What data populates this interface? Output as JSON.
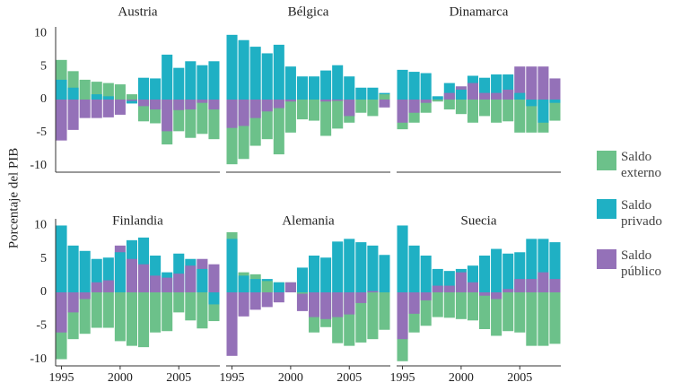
{
  "chart_data": [
    {
      "type": "bar",
      "title": "Austria",
      "ylabel": "Porcentaje del PIB",
      "x": [
        1995,
        1996,
        1997,
        1998,
        1999,
        2000,
        2001,
        2002,
        2003,
        2004,
        2005,
        2006,
        2007,
        2008
      ],
      "xlim": [
        1994.5,
        2008.5
      ],
      "ylim": [
        -11,
        11
      ],
      "yticks": [
        -10,
        -5,
        0,
        5,
        10
      ],
      "series": [
        {
          "name": "Saldo externo",
          "color": "#6cc18a",
          "values": [
            6,
            4.3,
            3,
            2.7,
            2.5,
            2.3,
            0.8,
            -3.3,
            -3.6,
            -6.8,
            -4.8,
            -5.8,
            -5.2,
            -6
          ]
        },
        {
          "name": "Saldo privado",
          "color": "#1fb0c4",
          "values": [
            3,
            1.8,
            0,
            0.8,
            0.5,
            0,
            -0.6,
            3.3,
            3.2,
            6.8,
            4.8,
            5.8,
            5.2,
            5.8
          ]
        },
        {
          "name": "Saldo público",
          "color": "#9471b8",
          "values": [
            -6.2,
            -4.6,
            -2.8,
            -2.8,
            -2.7,
            -2.3,
            -0.2,
            -1,
            -1.5,
            -4.8,
            -1.6,
            -1.5,
            -0.5,
            -1.5
          ]
        }
      ]
    },
    {
      "type": "bar",
      "title": "Bélgica",
      "x": [
        1995,
        1996,
        1997,
        1998,
        1999,
        2000,
        2001,
        2002,
        2003,
        2004,
        2005,
        2006,
        2007,
        2008
      ],
      "xlim": [
        1994.5,
        2008.5
      ],
      "ylim": [
        -11,
        11
      ],
      "series": [
        {
          "name": "Saldo externo",
          "color": "#6cc18a",
          "values": [
            -9.8,
            -9,
            -7,
            -6,
            -8.3,
            -5,
            -3,
            -3.2,
            -5.5,
            -4.4,
            -3.5,
            -2,
            -2.5,
            0.8
          ]
        },
        {
          "name": "Saldo privado",
          "color": "#1fb0c4",
          "values": [
            9.8,
            9,
            8,
            7,
            8.3,
            5,
            3.5,
            3.5,
            4.4,
            5.2,
            3.5,
            1.8,
            1.8,
            1
          ]
        },
        {
          "name": "Saldo público",
          "color": "#9471b8",
          "values": [
            -4.3,
            -4,
            -2.8,
            -1.8,
            -1.3,
            -0.3,
            0,
            0,
            -0.3,
            -0.2,
            -2.5,
            0,
            0,
            -1.2
          ]
        }
      ]
    },
    {
      "type": "bar",
      "title": "Dinamarca",
      "x": [
        1995,
        1996,
        1997,
        1998,
        1999,
        2000,
        2001,
        2002,
        2003,
        2004,
        2005,
        2006,
        2007,
        2008
      ],
      "xlim": [
        1994.5,
        2008.5
      ],
      "ylim": [
        -11,
        11
      ],
      "series": [
        {
          "name": "Saldo externo",
          "color": "#6cc18a",
          "values": [
            -4.5,
            -3.5,
            -2,
            -0.3,
            -1.5,
            -2.2,
            -3.5,
            -2.5,
            -3.5,
            -3.3,
            -5,
            -5,
            -5,
            -3.2
          ]
        },
        {
          "name": "Saldo privado",
          "color": "#1fb0c4",
          "values": [
            4.5,
            4.2,
            4,
            0.5,
            2.5,
            1.5,
            3.6,
            3.3,
            3.8,
            3.8,
            1,
            -1,
            -3.5,
            -0.5
          ]
        },
        {
          "name": "Saldo público",
          "color": "#9471b8",
          "values": [
            -3.5,
            -2,
            -0.5,
            0,
            1,
            2,
            2.5,
            1,
            1,
            1.5,
            5,
            5,
            5,
            3.2
          ]
        }
      ]
    },
    {
      "type": "bar",
      "title": "Finlandia",
      "x": [
        1995,
        1996,
        1997,
        1998,
        1999,
        2000,
        2001,
        2002,
        2003,
        2004,
        2005,
        2006,
        2007,
        2008
      ],
      "xlim": [
        1994.5,
        2008.5
      ],
      "xticks": [
        1995,
        2000,
        2005
      ],
      "ylim": [
        -11,
        11
      ],
      "yticks": [
        -10,
        -5,
        0,
        5,
        10
      ],
      "series": [
        {
          "name": "Saldo externo",
          "color": "#6cc18a",
          "values": [
            -10,
            -7,
            -6.2,
            -5.3,
            -5.3,
            -7.3,
            -8,
            -8.2,
            -6,
            -5.8,
            -3,
            -4.2,
            -5.4,
            -4.3
          ]
        },
        {
          "name": "Saldo privado",
          "color": "#1fb0c4",
          "values": [
            10,
            7,
            6.2,
            5,
            5.2,
            6,
            7.8,
            8.2,
            5.5,
            3,
            5.8,
            5,
            3.5,
            -1.8
          ]
        },
        {
          "name": "Saldo público",
          "color": "#9471b8",
          "values": [
            -6,
            -3,
            -1,
            1.5,
            1.8,
            7,
            5,
            4.2,
            2.5,
            2.2,
            2.8,
            4,
            5,
            4.2
          ]
        }
      ]
    },
    {
      "type": "bar",
      "title": "Alemania",
      "x": [
        1995,
        1996,
        1997,
        1998,
        1999,
        2000,
        2001,
        2002,
        2003,
        2004,
        2005,
        2006,
        2007,
        2008
      ],
      "xlim": [
        1994.5,
        2008.5
      ],
      "xticks": [
        1995,
        2000,
        2005
      ],
      "ylim": [
        -11,
        11
      ],
      "series": [
        {
          "name": "Saldo externo",
          "color": "#6cc18a",
          "values": [
            9,
            3,
            2.7,
            1.7,
            1.5,
            1.5,
            -0.2,
            -6,
            -5.2,
            -7.6,
            -8,
            -7.5,
            -7,
            -5.6
          ]
        },
        {
          "name": "Saldo privado",
          "color": "#1fb0c4",
          "values": [
            8,
            2.5,
            2,
            2,
            1.5,
            0,
            3.7,
            5.5,
            5.2,
            7.6,
            8,
            7.5,
            7,
            5.6
          ]
        },
        {
          "name": "Saldo público",
          "color": "#9471b8",
          "values": [
            -9.5,
            -3.6,
            -2.6,
            -2.2,
            -1.5,
            1.5,
            -2.8,
            -3.7,
            -4,
            -3.7,
            -3.3,
            -1.6,
            0.2,
            0
          ]
        }
      ]
    },
    {
      "type": "bar",
      "title": "Suecia",
      "x": [
        1995,
        1996,
        1997,
        1998,
        1999,
        2000,
        2001,
        2002,
        2003,
        2004,
        2005,
        2006,
        2007,
        2008
      ],
      "xlim": [
        1994.5,
        2008.5
      ],
      "xticks": [
        1995,
        2000,
        2005
      ],
      "ylim": [
        -11,
        11
      ],
      "series": [
        {
          "name": "Saldo externo",
          "color": "#6cc18a",
          "values": [
            -10.3,
            -6,
            -5,
            -3.7,
            -3.8,
            -4,
            -4.2,
            -5.5,
            -6.5,
            -5.8,
            -6,
            -8,
            -8,
            -7.7
          ]
        },
        {
          "name": "Saldo privado",
          "color": "#1fb0c4",
          "values": [
            10,
            7,
            5.5,
            3.5,
            3.2,
            3.5,
            4,
            5.5,
            6.5,
            5.8,
            6,
            8,
            8,
            7.5
          ]
        },
        {
          "name": "Saldo público",
          "color": "#9471b8",
          "values": [
            -7,
            -3.2,
            -1.2,
            1,
            1,
            3,
            1.5,
            -0.5,
            -1,
            0.5,
            2,
            2,
            3,
            2
          ]
        }
      ]
    }
  ]
}
